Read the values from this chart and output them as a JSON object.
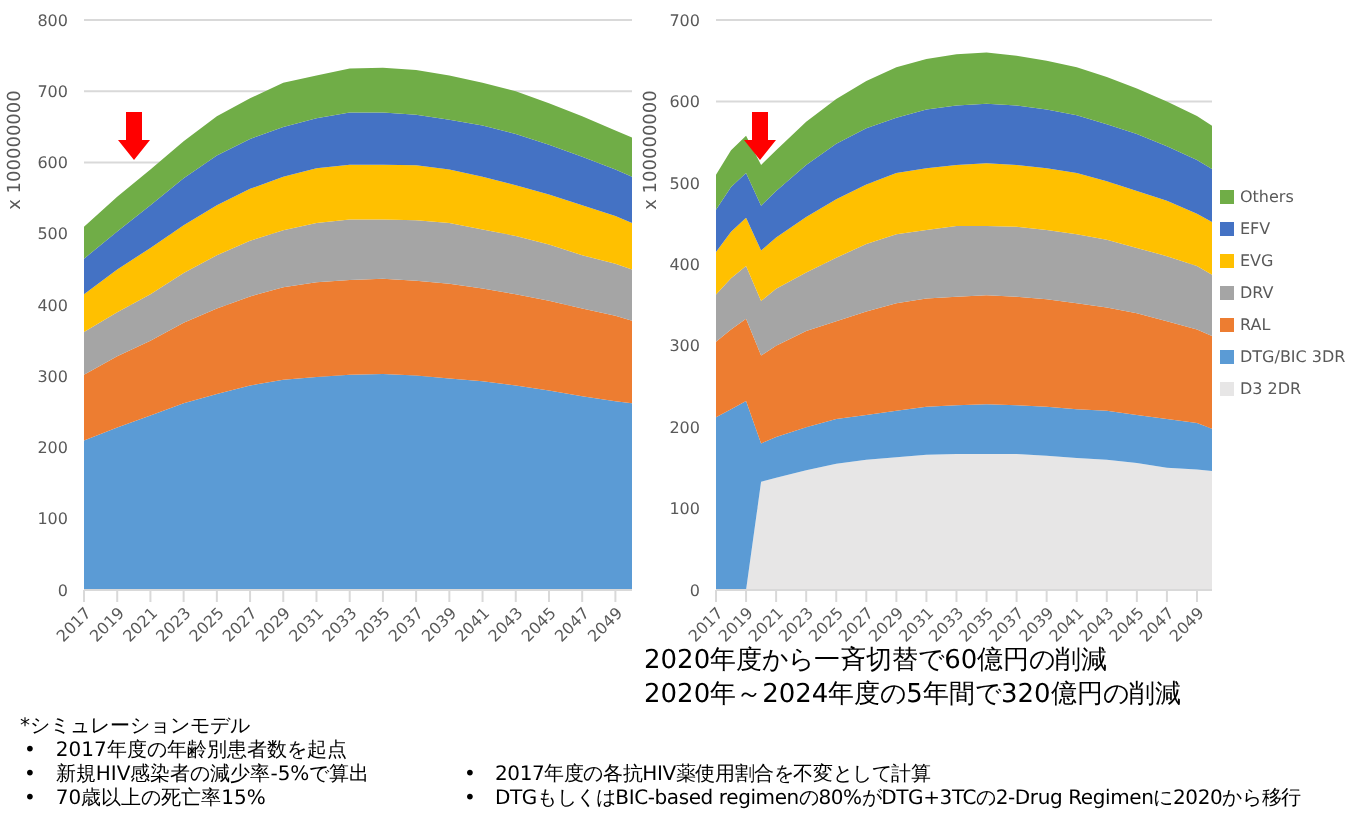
{
  "chart_data": [
    {
      "type": "area",
      "stacked": true,
      "ylabel": "x 100000000",
      "x": [
        2017,
        2019,
        2021,
        2023,
        2025,
        2027,
        2029,
        2031,
        2033,
        2035,
        2037,
        2039,
        2041,
        2043,
        2045,
        2047,
        2049,
        2050
      ],
      "xlim": [
        2017,
        2050
      ],
      "xticks": [
        2017,
        2019,
        2021,
        2023,
        2025,
        2027,
        2029,
        2031,
        2033,
        2035,
        2037,
        2039,
        2041,
        2043,
        2045,
        2047,
        2049
      ],
      "ylim": [
        0,
        800
      ],
      "yticks": [
        0,
        100,
        200,
        300,
        400,
        500,
        600,
        700,
        800
      ],
      "grid": "y",
      "series": [
        {
          "color": "#5b9bd5",
          "values": [
            210,
            228,
            245,
            262,
            275,
            287,
            295,
            299,
            302,
            303,
            301,
            297,
            293,
            287,
            280,
            272,
            265,
            262
          ]
        },
        {
          "color": "#ed7d31",
          "values": [
            92,
            100,
            105,
            113,
            120,
            125,
            130,
            133,
            133,
            134,
            133,
            133,
            130,
            128,
            126,
            123,
            120,
            116
          ]
        },
        {
          "color": "#a5a5a5",
          "values": [
            60,
            62,
            65,
            70,
            75,
            78,
            80,
            83,
            85,
            83,
            85,
            85,
            83,
            82,
            79,
            75,
            73,
            72
          ]
        },
        {
          "color": "#ffc000",
          "values": [
            53,
            60,
            65,
            67,
            70,
            73,
            75,
            77,
            77,
            77,
            77,
            75,
            74,
            71,
            70,
            70,
            67,
            65
          ]
        },
        {
          "color": "#4472c4",
          "values": [
            50,
            53,
            60,
            66,
            70,
            70,
            70,
            70,
            73,
            73,
            71,
            70,
            72,
            72,
            70,
            68,
            65,
            65
          ]
        },
        {
          "color": "#70ad47",
          "values": [
            45,
            49,
            50,
            52,
            55,
            57,
            62,
            60,
            62,
            63,
            63,
            62,
            60,
            60,
            58,
            57,
            55,
            55
          ]
        }
      ],
      "annotations": [
        "*シミュレーションモデル",
        "•　2017年度の年齢別患者数を起点",
        "•　新規HIV感染者の減少率-5%で算出",
        "•　70歳以上の死亡率15%"
      ]
    },
    {
      "type": "area",
      "stacked": true,
      "ylabel": "x 100000000",
      "x": [
        2017,
        2018,
        2019,
        2020,
        2021,
        2023,
        2025,
        2027,
        2029,
        2031,
        2033,
        2035,
        2037,
        2039,
        2041,
        2043,
        2045,
        2047,
        2049,
        2050
      ],
      "xlim": [
        2017,
        2050
      ],
      "xticks": [
        2017,
        2019,
        2021,
        2023,
        2025,
        2027,
        2029,
        2031,
        2033,
        2035,
        2037,
        2039,
        2041,
        2043,
        2045,
        2047,
        2049
      ],
      "ylim": [
        0,
        700
      ],
      "yticks": [
        0,
        100,
        200,
        300,
        400,
        500,
        600,
        700
      ],
      "grid": "y",
      "legend": "right",
      "series": [
        {
          "name": "D3 2DR",
          "color": "#e7e6e6",
          "values": [
            0,
            0,
            0,
            133,
            138,
            147,
            155,
            160,
            163,
            166,
            167,
            167,
            167,
            165,
            162,
            160,
            156,
            150,
            148,
            146
          ]
        },
        {
          "name": "DTG/BIC 3DR",
          "color": "#5b9bd5",
          "values": [
            212,
            222,
            232,
            47,
            50,
            53,
            55,
            55,
            57,
            59,
            60,
            61,
            60,
            60,
            60,
            60,
            59,
            60,
            57,
            52
          ]
        },
        {
          "name": "RAL",
          "color": "#ed7d31",
          "values": [
            93,
            98,
            101,
            108,
            112,
            118,
            120,
            127,
            132,
            133,
            133,
            134,
            133,
            132,
            130,
            127,
            125,
            120,
            115,
            114
          ]
        },
        {
          "name": "DRV",
          "color": "#a5a5a5",
          "values": [
            58,
            63,
            65,
            67,
            70,
            72,
            78,
            83,
            85,
            84,
            87,
            85,
            86,
            85,
            85,
            83,
            80,
            80,
            78,
            75
          ]
        },
        {
          "name": "EVG",
          "color": "#ffc000",
          "values": [
            52,
            57,
            59,
            62,
            63,
            68,
            72,
            73,
            75,
            76,
            75,
            77,
            76,
            76,
            75,
            72,
            70,
            68,
            64,
            65
          ]
        },
        {
          "name": "EFV",
          "color": "#4472c4",
          "values": [
            52,
            55,
            55,
            55,
            57,
            64,
            68,
            69,
            68,
            72,
            73,
            73,
            73,
            72,
            71,
            70,
            70,
            67,
            66,
            65
          ]
        },
        {
          "name": "Others",
          "color": "#70ad47",
          "values": [
            43,
            45,
            46,
            50,
            50,
            53,
            55,
            58,
            62,
            62,
            63,
            63,
            61,
            60,
            59,
            58,
            56,
            55,
            54,
            53
          ]
        }
      ],
      "annotations": [
        "2020年度から一斉切替で60億円の削減",
        "2020年～2024年度の5年間で320億円の削減",
        "•　2017年度の各抗HIV薬使用割合を不変として計算",
        "•　DTGもしくはBIC-based regimenの80%がDTG+3TCの2-Drug Regimenに2020から移行"
      ]
    }
  ]
}
